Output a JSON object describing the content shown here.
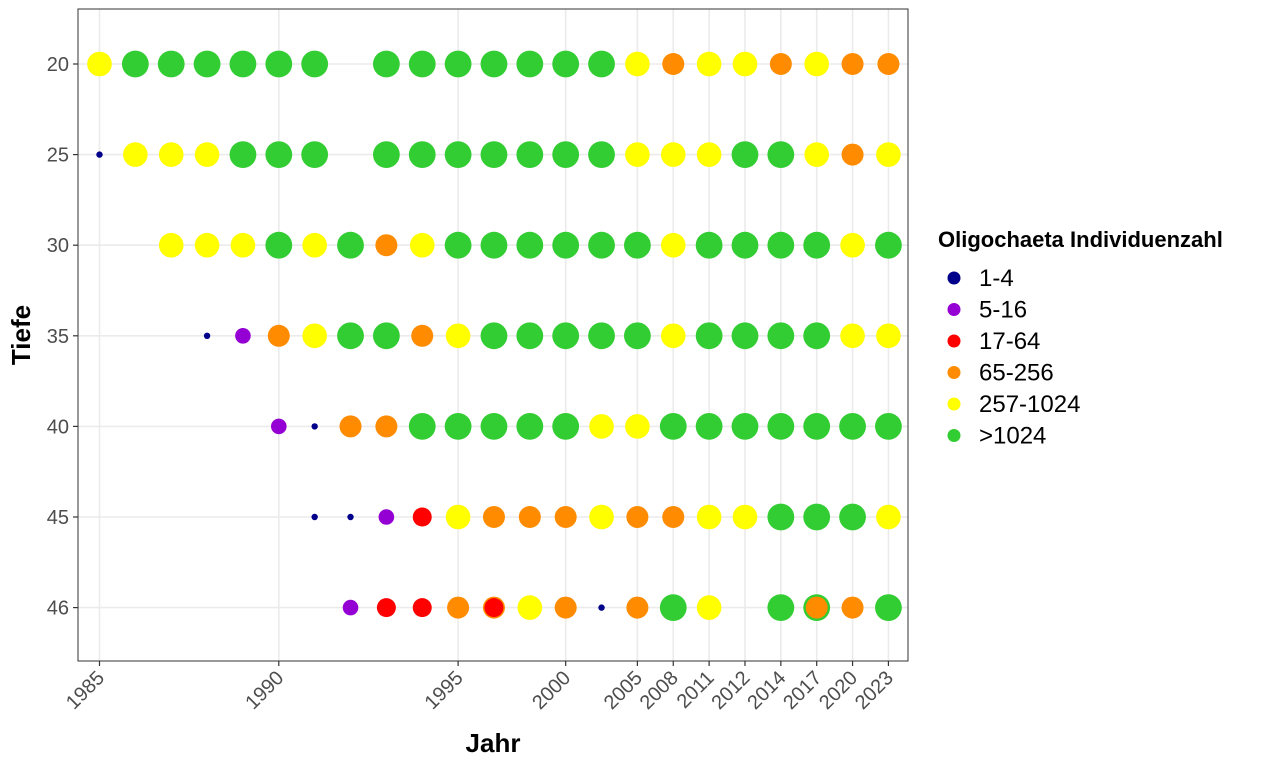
{
  "chart_data": {
    "type": "scatter",
    "xlabel": "Jahr",
    "ylabel": "Tiefe",
    "x_ticks": [
      "1985",
      "1990",
      "1995",
      "2000",
      "2005",
      "2008",
      "2011",
      "2012",
      "2014",
      "2017",
      "2020",
      "2023"
    ],
    "y_categories": [
      "20",
      "25",
      "30",
      "35",
      "40",
      "45",
      "46"
    ],
    "grid": true,
    "legend_position": "right",
    "legend": {
      "title": "Oligochaeta Individuenzahl",
      "classes": [
        {
          "label": "1-4",
          "color": "#00008B",
          "size": 1
        },
        {
          "label": "5-16",
          "color": "#9400D3",
          "size": 2
        },
        {
          "label": "17-64",
          "color": "#FF0000",
          "size": 3
        },
        {
          "label": "65-256",
          "color": "#FF8C00",
          "size": 4
        },
        {
          "label": "257-1024",
          "color": "#FFFF00",
          "size": 5
        },
        {
          "label": ">1024",
          "color": "#32CD32",
          "size": 6
        }
      ]
    },
    "series": [
      {
        "depth": "20",
        "points": [
          {
            "x": "1985",
            "class": "257-1024"
          },
          {
            "x": "1986",
            "class": ">1024"
          },
          {
            "x": "1987",
            "class": ">1024"
          },
          {
            "x": "1988",
            "class": ">1024"
          },
          {
            "x": "1989",
            "class": ">1024"
          },
          {
            "x": "1990",
            "class": ">1024"
          },
          {
            "x": "1991",
            "class": ">1024"
          },
          {
            "x": "1993",
            "class": ">1024"
          },
          {
            "x": "1994",
            "class": ">1024"
          },
          {
            "x": "1995",
            "class": ">1024"
          },
          {
            "x": "1996",
            "class": ">1024"
          },
          {
            "x": "1998",
            "class": ">1024"
          },
          {
            "x": "2000",
            "class": ">1024"
          },
          {
            "x": "2003",
            "class": ">1024"
          },
          {
            "x": "2005",
            "class": "257-1024"
          },
          {
            "x": "2008",
            "class": "65-256"
          },
          {
            "x": "2011",
            "class": "257-1024"
          },
          {
            "x": "2012",
            "class": "257-1024"
          },
          {
            "x": "2014",
            "class": "65-256"
          },
          {
            "x": "2017",
            "class": "257-1024"
          },
          {
            "x": "2020",
            "class": "65-256"
          },
          {
            "x": "2023",
            "class": "65-256"
          }
        ]
      },
      {
        "depth": "25",
        "points": [
          {
            "x": "1985",
            "class": "1-4"
          },
          {
            "x": "1986",
            "class": "257-1024"
          },
          {
            "x": "1987",
            "class": "257-1024"
          },
          {
            "x": "1988",
            "class": "257-1024"
          },
          {
            "x": "1989",
            "class": ">1024"
          },
          {
            "x": "1990",
            "class": ">1024"
          },
          {
            "x": "1991",
            "class": ">1024"
          },
          {
            "x": "1993",
            "class": ">1024"
          },
          {
            "x": "1994",
            "class": ">1024"
          },
          {
            "x": "1995",
            "class": ">1024"
          },
          {
            "x": "1996",
            "class": ">1024"
          },
          {
            "x": "1998",
            "class": ">1024"
          },
          {
            "x": "2000",
            "class": ">1024"
          },
          {
            "x": "2003",
            "class": ">1024"
          },
          {
            "x": "2005",
            "class": "257-1024"
          },
          {
            "x": "2008",
            "class": "257-1024"
          },
          {
            "x": "2011",
            "class": "257-1024"
          },
          {
            "x": "2012",
            "class": ">1024"
          },
          {
            "x": "2014",
            "class": ">1024"
          },
          {
            "x": "2017",
            "class": "257-1024"
          },
          {
            "x": "2020",
            "class": "65-256"
          },
          {
            "x": "2023",
            "class": "257-1024"
          }
        ]
      },
      {
        "depth": "30",
        "points": [
          {
            "x": "1987",
            "class": "257-1024"
          },
          {
            "x": "1988",
            "class": "257-1024"
          },
          {
            "x": "1989",
            "class": "257-1024"
          },
          {
            "x": "1990",
            "class": ">1024"
          },
          {
            "x": "1991",
            "class": "257-1024"
          },
          {
            "x": "1992",
            "class": ">1024"
          },
          {
            "x": "1993",
            "class": "65-256"
          },
          {
            "x": "1994",
            "class": "257-1024"
          },
          {
            "x": "1995",
            "class": ">1024"
          },
          {
            "x": "1996",
            "class": ">1024"
          },
          {
            "x": "1998",
            "class": ">1024"
          },
          {
            "x": "2000",
            "class": ">1024"
          },
          {
            "x": "2003",
            "class": ">1024"
          },
          {
            "x": "2005",
            "class": ">1024"
          },
          {
            "x": "2008",
            "class": "257-1024"
          },
          {
            "x": "2011",
            "class": ">1024"
          },
          {
            "x": "2012",
            "class": ">1024"
          },
          {
            "x": "2014",
            "class": ">1024"
          },
          {
            "x": "2017",
            "class": ">1024"
          },
          {
            "x": "2020",
            "class": "257-1024"
          },
          {
            "x": "2023",
            "class": ">1024"
          }
        ]
      },
      {
        "depth": "35",
        "points": [
          {
            "x": "1988",
            "class": "1-4"
          },
          {
            "x": "1989",
            "class": "5-16"
          },
          {
            "x": "1990",
            "class": "65-256"
          },
          {
            "x": "1991",
            "class": "257-1024"
          },
          {
            "x": "1992",
            "class": ">1024"
          },
          {
            "x": "1993",
            "class": ">1024"
          },
          {
            "x": "1994",
            "class": "65-256"
          },
          {
            "x": "1995",
            "class": "257-1024"
          },
          {
            "x": "1996",
            "class": ">1024"
          },
          {
            "x": "1998",
            "class": ">1024"
          },
          {
            "x": "2000",
            "class": ">1024"
          },
          {
            "x": "2003",
            "class": ">1024"
          },
          {
            "x": "2005",
            "class": ">1024"
          },
          {
            "x": "2008",
            "class": "257-1024"
          },
          {
            "x": "2011",
            "class": ">1024"
          },
          {
            "x": "2012",
            "class": ">1024"
          },
          {
            "x": "2014",
            "class": ">1024"
          },
          {
            "x": "2017",
            "class": ">1024"
          },
          {
            "x": "2020",
            "class": "257-1024"
          },
          {
            "x": "2023",
            "class": "257-1024"
          }
        ]
      },
      {
        "depth": "40",
        "points": [
          {
            "x": "1990",
            "class": "5-16"
          },
          {
            "x": "1991",
            "class": "1-4"
          },
          {
            "x": "1992",
            "class": "65-256"
          },
          {
            "x": "1993",
            "class": "65-256"
          },
          {
            "x": "1994",
            "class": ">1024"
          },
          {
            "x": "1995",
            "class": ">1024"
          },
          {
            "x": "1996",
            "class": ">1024"
          },
          {
            "x": "1998",
            "class": ">1024"
          },
          {
            "x": "2000",
            "class": ">1024"
          },
          {
            "x": "2003",
            "class": "257-1024"
          },
          {
            "x": "2005",
            "class": "257-1024"
          },
          {
            "x": "2008",
            "class": ">1024"
          },
          {
            "x": "2011",
            "class": ">1024"
          },
          {
            "x": "2012",
            "class": ">1024"
          },
          {
            "x": "2014",
            "class": ">1024"
          },
          {
            "x": "2017",
            "class": ">1024"
          },
          {
            "x": "2020",
            "class": ">1024"
          },
          {
            "x": "2023",
            "class": ">1024"
          }
        ]
      },
      {
        "depth": "45",
        "points": [
          {
            "x": "1991",
            "class": "1-4"
          },
          {
            "x": "1992",
            "class": "1-4"
          },
          {
            "x": "1993",
            "class": "5-16"
          },
          {
            "x": "1994",
            "class": "17-64"
          },
          {
            "x": "1995",
            "class": "257-1024"
          },
          {
            "x": "1996",
            "class": "65-256"
          },
          {
            "x": "1998",
            "class": "65-256"
          },
          {
            "x": "2000",
            "class": "65-256"
          },
          {
            "x": "2003",
            "class": "257-1024"
          },
          {
            "x": "2005",
            "class": "65-256"
          },
          {
            "x": "2008",
            "class": "65-256"
          },
          {
            "x": "2011",
            "class": "257-1024"
          },
          {
            "x": "2012",
            "class": "257-1024"
          },
          {
            "x": "2014",
            "class": ">1024"
          },
          {
            "x": "2017",
            "class": ">1024"
          },
          {
            "x": "2020",
            "class": ">1024"
          },
          {
            "x": "2023",
            "class": "257-1024"
          }
        ]
      },
      {
        "depth": "46",
        "points": [
          {
            "x": "1992",
            "class": "5-16"
          },
          {
            "x": "1993",
            "class": "17-64"
          },
          {
            "x": "1994",
            "class": "17-64"
          },
          {
            "x": "1995",
            "class": "65-256"
          },
          {
            "x": "1996",
            "class": "65-256"
          },
          {
            "x": "1996",
            "class": "17-64"
          },
          {
            "x": "1998",
            "class": "257-1024"
          },
          {
            "x": "2000",
            "class": "65-256"
          },
          {
            "x": "2003",
            "class": "1-4"
          },
          {
            "x": "2005",
            "class": "65-256"
          },
          {
            "x": "2008",
            "class": ">1024"
          },
          {
            "x": "2011",
            "class": "257-1024"
          },
          {
            "x": "2014",
            "class": ">1024"
          },
          {
            "x": "2017",
            "class": ">1024"
          },
          {
            "x": "2017",
            "class": "65-256"
          },
          {
            "x": "2020",
            "class": "65-256"
          },
          {
            "x": "2023",
            "class": ">1024"
          }
        ]
      }
    ]
  }
}
